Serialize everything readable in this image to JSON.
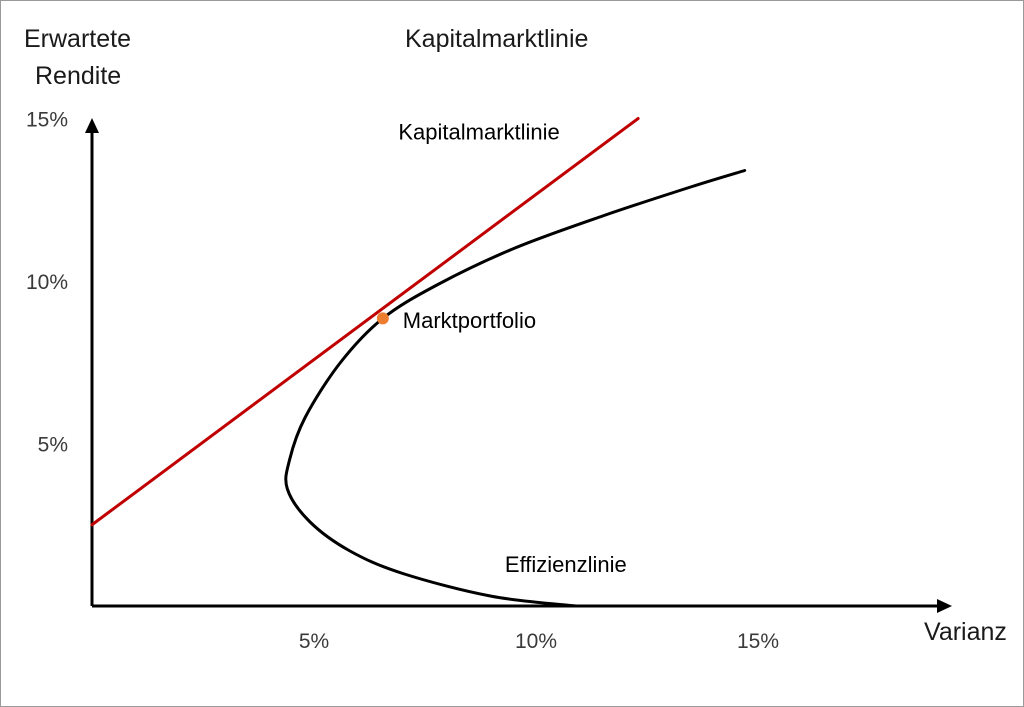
{
  "chart_data": {
    "type": "line",
    "title": "Kapitalmarktlinie",
    "xlabel": "Varianz",
    "ylabel_lines": [
      "Erwartete",
      "Rendite"
    ],
    "xlim": [
      0,
      19
    ],
    "ylim": [
      0,
      15
    ],
    "x_ticks": [
      {
        "value": 5,
        "label": "5%"
      },
      {
        "value": 10,
        "label": "10%"
      },
      {
        "value": 15,
        "label": "15%"
      }
    ],
    "y_ticks": [
      {
        "value": 5,
        "label": "5%"
      },
      {
        "value": 10,
        "label": "10%"
      },
      {
        "value": 15,
        "label": "15%"
      }
    ],
    "grid": false,
    "series": [
      {
        "name": "Kapitalmarktlinie",
        "color": "#c00000",
        "x": [
          0,
          12.3
        ],
        "y": [
          2.5,
          15
        ]
      },
      {
        "name": "Effizienzlinie",
        "color": "#000000",
        "x": [
          10.9,
          9.0,
          7.0,
          5.8,
          4.9,
          4.4,
          4.45,
          4.8,
          5.6,
          6.55,
          7.8,
          9.5,
          11.5,
          13.5,
          14.7
        ],
        "y": [
          0,
          0.3,
          1.0,
          1.7,
          2.6,
          3.6,
          4.5,
          5.8,
          7.5,
          8.85,
          9.9,
          11.0,
          12.0,
          12.9,
          13.4
        ]
      }
    ],
    "points": [
      {
        "name": "Marktportfolio",
        "x": 6.55,
        "y": 8.85,
        "color": "#ed7d31"
      }
    ],
    "annotations": [
      {
        "text": "Kapitalmarktlinie",
        "x": 6.9,
        "y": 14.6
      },
      {
        "text": "Marktportfolio",
        "x": 7.0,
        "y": 8.8
      },
      {
        "text": "Effizienzlinie",
        "x": 9.3,
        "y": 1.3
      }
    ]
  }
}
